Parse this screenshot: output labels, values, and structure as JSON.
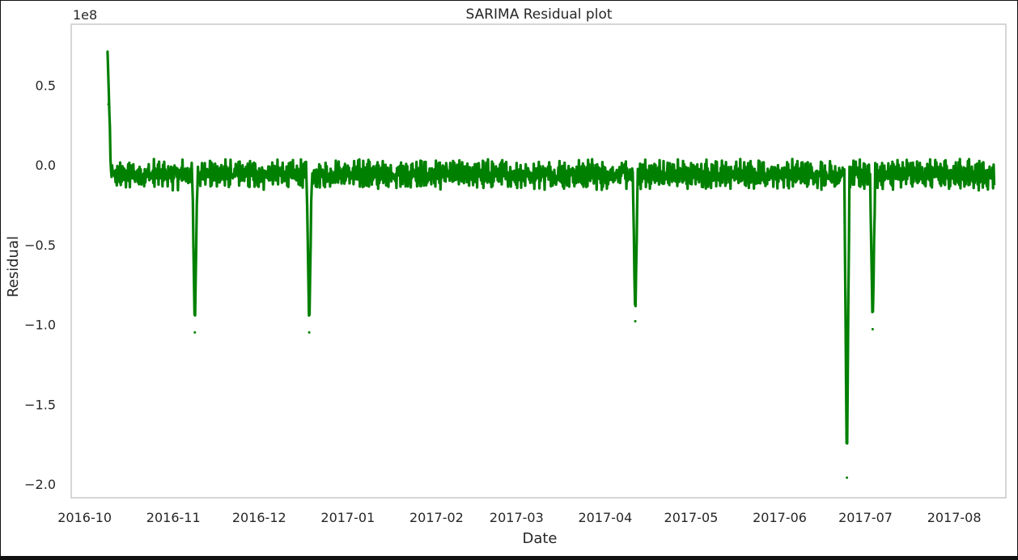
{
  "chart_data": {
    "type": "line",
    "title": "SARIMA Residual plot",
    "xlabel": "Date",
    "ylabel": "Residual",
    "offset_text": "1e8",
    "series_color": "#008000",
    "grid": false,
    "x_range_days": [
      -5,
      315
    ],
    "ylim": [
      -2.08,
      0.8
    ],
    "x_ticks": [
      {
        "label": "2016-10",
        "day": 0
      },
      {
        "label": "2016-11",
        "day": 31
      },
      {
        "label": "2016-12",
        "day": 61
      },
      {
        "label": "2017-01",
        "day": 92
      },
      {
        "label": "2017-02",
        "day": 123
      },
      {
        "label": "2017-03",
        "day": 151
      },
      {
        "label": "2017-04",
        "day": 182
      },
      {
        "label": "2017-05",
        "day": 212
      },
      {
        "label": "2017-06",
        "day": 243
      },
      {
        "label": "2017-07",
        "day": 273
      },
      {
        "label": "2017-08",
        "day": 304
      }
    ],
    "y_ticks": [
      {
        "label": "0.5",
        "value": 0.5
      },
      {
        "label": "0.0",
        "value": 0.0
      },
      {
        "label": "−0.5",
        "value": -0.5
      },
      {
        "label": "−1.0",
        "value": -1.0
      },
      {
        "label": "−1.5",
        "value": -1.5
      },
      {
        "label": "−2.0",
        "value": -2.0
      }
    ],
    "series": [
      {
        "name": "residual",
        "x_start_date": "2016-10-09",
        "x_end_date": "2017-08-15",
        "start_day": 8,
        "end_day": 318,
        "units": "1e8",
        "band_low": -0.14,
        "band_high": 0.02,
        "band_center": -0.06,
        "spikes": [
          {
            "date": "2016-10-09",
            "day": 8.0,
            "value": 0.71
          },
          {
            "date": "2016-10-10",
            "day": 8.3,
            "value": 0.38
          },
          {
            "date": "2016-11-10",
            "day": 38.5,
            "value": -1.05
          },
          {
            "date": "2016-12-20",
            "day": 78.5,
            "value": -1.05
          },
          {
            "date": "2017-04-13",
            "day": 192.5,
            "value": -0.98
          },
          {
            "date": "2017-06-26",
            "day": 266.5,
            "value": -1.96
          },
          {
            "date": "2017-07-05",
            "day": 275.5,
            "value": -1.03
          }
        ]
      }
    ]
  }
}
